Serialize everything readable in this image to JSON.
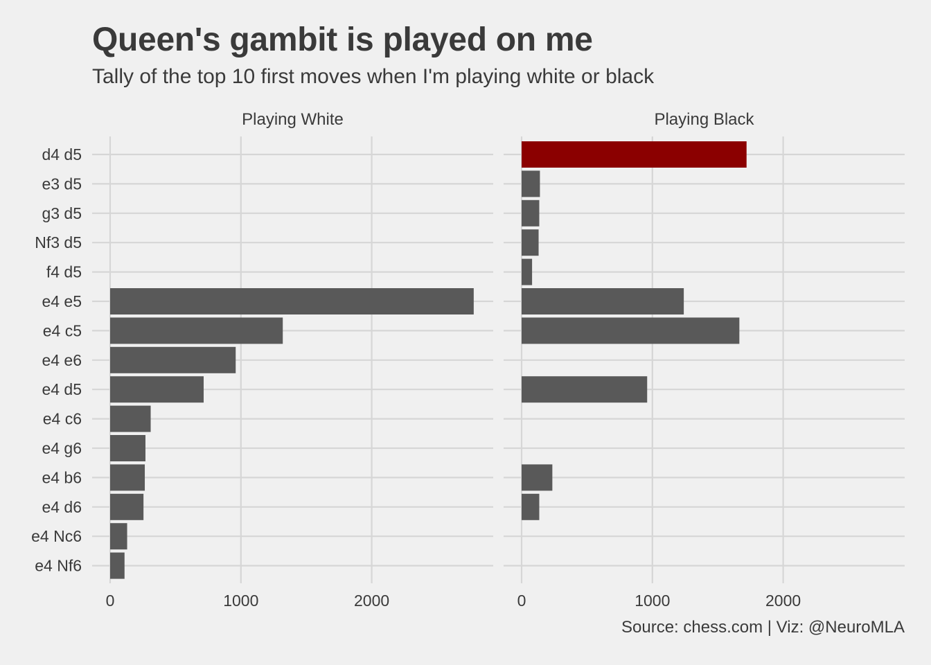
{
  "header": {
    "title": "Queen's gambit is played on me",
    "subtitle": "Tally of the top 10 first moves when I'm playing white or black",
    "caption": "Source: chess.com | Viz: @NeuroMLA"
  },
  "colors": {
    "background": "#f0f0f0",
    "bar": "#595959",
    "highlight": "#8b0000",
    "grid": "#d6d6d6",
    "text": "#3a3a3a"
  },
  "chart_data": {
    "type": "bar",
    "orientation": "horizontal",
    "title": "Queen's gambit is played on me",
    "subtitle": "Tally of the top 10 first moves when I'm playing white or black",
    "xlabel": "",
    "ylabel": "",
    "xlim": [
      0,
      2900
    ],
    "xticks": [
      0,
      1000,
      2000
    ],
    "grid": true,
    "legend": "none",
    "categories": [
      "d4 d5",
      "e3 d5",
      "g3 d5",
      "Nf3 d5",
      "f4 d5",
      "e4 e5",
      "e4 c5",
      "e4 e6",
      "e4 d5",
      "e4 c6",
      "e4 g6",
      "e4 b6",
      "e4 d6",
      "e4 Nc6",
      "e4 Nf6"
    ],
    "facets": [
      {
        "name": "Playing White",
        "values": [
          null,
          null,
          null,
          null,
          null,
          2780,
          1320,
          960,
          715,
          310,
          270,
          265,
          255,
          130,
          110
        ],
        "highlight": []
      },
      {
        "name": "Playing Black",
        "values": [
          1720,
          140,
          135,
          130,
          80,
          1240,
          1665,
          null,
          960,
          null,
          null,
          235,
          135,
          null,
          null
        ],
        "highlight": [
          "d4 d5"
        ]
      }
    ]
  }
}
